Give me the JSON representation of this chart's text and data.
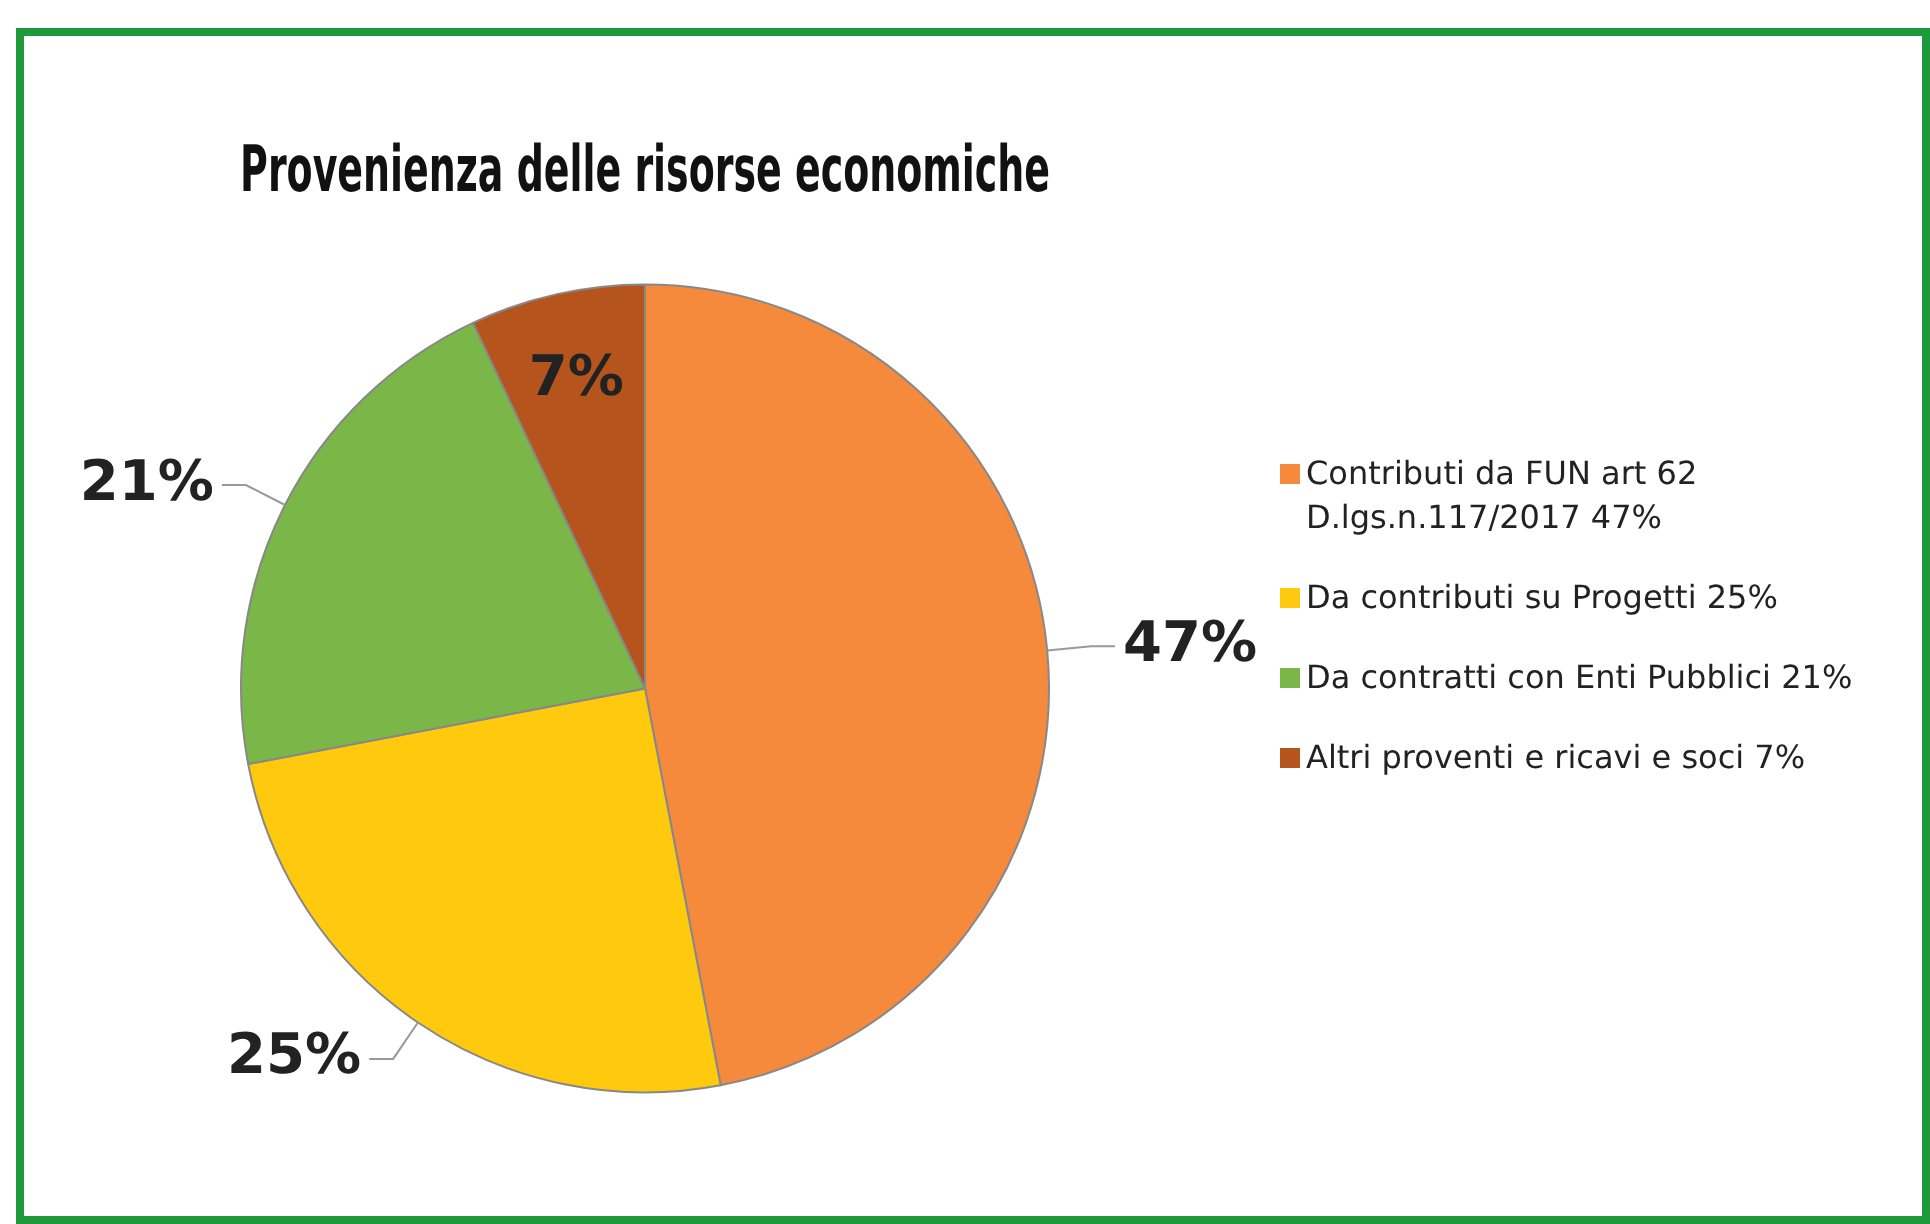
{
  "chart_data": {
    "type": "pie",
    "title": "Provenienza delle risorse economiche",
    "categories": [
      "Contributi da FUN art 62 D.lgs.n.117/2017 47%",
      "Da contributi su Progetti  25%",
      "Da contratti con Enti Pubblici 21%",
      "Altri proventi e ricavi e soci 7%"
    ],
    "values": [
      47,
      25,
      21,
      7
    ],
    "colors": [
      "#f58a3c",
      "#ffc90e",
      "#7ab648",
      "#b5541c"
    ],
    "value_labels": [
      "47%",
      "25%",
      "21%",
      "7%"
    ],
    "legend": "right"
  }
}
